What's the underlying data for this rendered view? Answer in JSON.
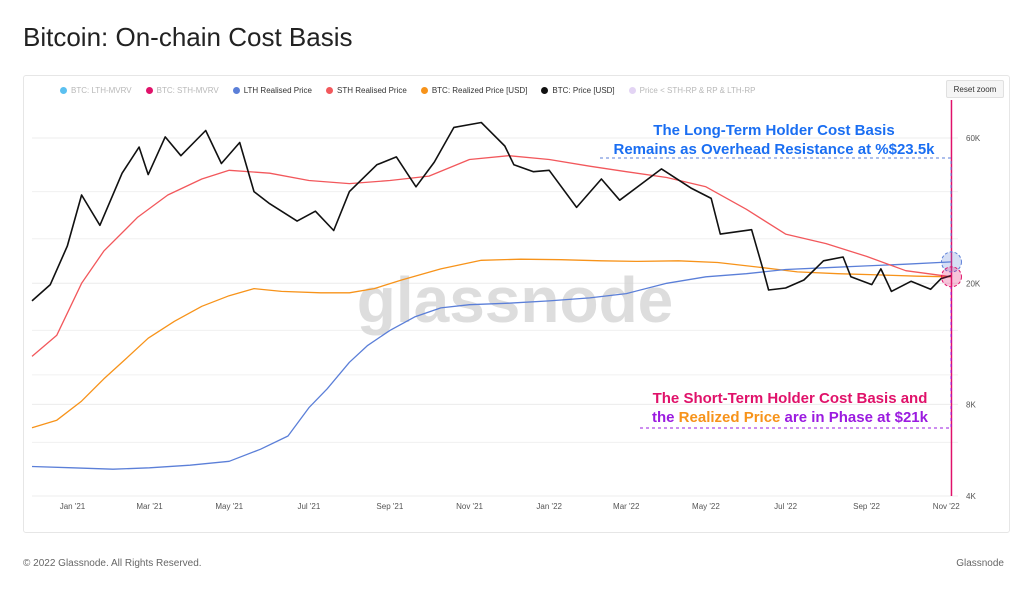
{
  "page": {
    "title": "Bitcoin: On-chain Cost Basis",
    "footer_left": "© 2022 Glassnode. All Rights Reserved.",
    "footer_right": "Glassnode",
    "watermark": "glassnode",
    "reset_zoom": "Reset zoom"
  },
  "legend": [
    {
      "label": "BTC: LTH-MVRV",
      "color": "#5bc0f0",
      "muted": true
    },
    {
      "label": "BTC: STH-MVRV",
      "color": "#e0126a",
      "muted": true
    },
    {
      "label": "LTH Realised Price",
      "color": "#5b7fd8",
      "muted": false
    },
    {
      "label": "STH Realised Price",
      "color": "#f2585c",
      "muted": false
    },
    {
      "label": "BTC: Realized Price [USD]",
      "color": "#f7931a",
      "muted": false
    },
    {
      "label": "BTC: Price [USD]",
      "color": "#111111",
      "muted": false
    },
    {
      "label": "Price < STH-RP & RP & LTH-RP",
      "color": "#e3d4f4",
      "muted": true
    }
  ],
  "annotations": {
    "top_line1": "The Long-Term Holder Cost Basis",
    "top_line2": "Remains as Overhead Resistance at %$23.5k",
    "bottom_line1": "The Short-Term Holder Cost Basis and",
    "bottom_line2_a": "the ",
    "bottom_line2_b": "Realized Price",
    "bottom_line2_c": " are in Phase at $21k"
  },
  "chart_data": {
    "type": "line",
    "y_scale": "log",
    "ylim": [
      4000,
      80000
    ],
    "y_ticks": [
      {
        "value": 4000,
        "label": "4K"
      },
      {
        "value": 8000,
        "label": "8K"
      },
      {
        "value": 20000,
        "label": "20K"
      },
      {
        "value": 60000,
        "label": "60K"
      }
    ],
    "x_range": [
      "2020-12-01",
      "2022-11-10"
    ],
    "x_ticks": [
      {
        "date": "2021-01-01",
        "label": "Jan '21"
      },
      {
        "date": "2021-03-01",
        "label": "Mar '21"
      },
      {
        "date": "2021-05-01",
        "label": "May '21"
      },
      {
        "date": "2021-07-01",
        "label": "Jul '21"
      },
      {
        "date": "2021-09-01",
        "label": "Sep '21"
      },
      {
        "date": "2021-11-01",
        "label": "Nov '21"
      },
      {
        "date": "2022-01-01",
        "label": "Jan '22"
      },
      {
        "date": "2022-03-01",
        "label": "Mar '22"
      },
      {
        "date": "2022-05-01",
        "label": "May '22"
      },
      {
        "date": "2022-07-01",
        "label": "Jul '22"
      },
      {
        "date": "2022-09-01",
        "label": "Sep '22"
      },
      {
        "date": "2022-11-01",
        "label": "Nov '22"
      }
    ],
    "series": [
      {
        "name": "BTC: Price [USD]",
        "color": "#111111",
        "width": 1.6,
        "points": [
          [
            "2020-12-01",
            17500
          ],
          [
            "2020-12-15",
            19800
          ],
          [
            "2020-12-28",
            26500
          ],
          [
            "2021-01-08",
            39000
          ],
          [
            "2021-01-22",
            31000
          ],
          [
            "2021-02-08",
            46000
          ],
          [
            "2021-02-21",
            56000
          ],
          [
            "2021-02-28",
            45500
          ],
          [
            "2021-03-13",
            60500
          ],
          [
            "2021-03-25",
            52500
          ],
          [
            "2021-04-13",
            63500
          ],
          [
            "2021-04-25",
            49500
          ],
          [
            "2021-05-09",
            58000
          ],
          [
            "2021-05-20",
            40000
          ],
          [
            "2021-06-01",
            36500
          ],
          [
            "2021-06-22",
            32000
          ],
          [
            "2021-07-06",
            34500
          ],
          [
            "2021-07-20",
            29800
          ],
          [
            "2021-08-01",
            40000
          ],
          [
            "2021-08-22",
            49000
          ],
          [
            "2021-09-06",
            52000
          ],
          [
            "2021-09-21",
            41500
          ],
          [
            "2021-10-05",
            50000
          ],
          [
            "2021-10-20",
            65000
          ],
          [
            "2021-11-10",
            67500
          ],
          [
            "2021-11-28",
            56500
          ],
          [
            "2021-12-05",
            49000
          ],
          [
            "2021-12-20",
            46500
          ],
          [
            "2022-01-01",
            47000
          ],
          [
            "2022-01-22",
            35500
          ],
          [
            "2022-02-10",
            44000
          ],
          [
            "2022-02-24",
            37500
          ],
          [
            "2022-03-28",
            47500
          ],
          [
            "2022-04-20",
            41000
          ],
          [
            "2022-05-05",
            38000
          ],
          [
            "2022-05-12",
            29000
          ],
          [
            "2022-06-05",
            30000
          ],
          [
            "2022-06-14",
            22000
          ],
          [
            "2022-06-18",
            19000
          ],
          [
            "2022-07-01",
            19300
          ],
          [
            "2022-07-15",
            20500
          ],
          [
            "2022-07-30",
            23700
          ],
          [
            "2022-08-14",
            24400
          ],
          [
            "2022-08-20",
            21000
          ],
          [
            "2022-09-05",
            19800
          ],
          [
            "2022-09-12",
            22300
          ],
          [
            "2022-09-20",
            18800
          ],
          [
            "2022-10-05",
            20300
          ],
          [
            "2022-10-20",
            19100
          ],
          [
            "2022-10-28",
            20700
          ],
          [
            "2022-11-05",
            21200
          ]
        ]
      },
      {
        "name": "STH Realised Price",
        "color": "#f2585c",
        "width": 1.3,
        "points": [
          [
            "2020-12-01",
            11500
          ],
          [
            "2020-12-20",
            13500
          ],
          [
            "2021-01-08",
            20000
          ],
          [
            "2021-01-25",
            25500
          ],
          [
            "2021-02-20",
            33000
          ],
          [
            "2021-03-15",
            39000
          ],
          [
            "2021-04-10",
            44000
          ],
          [
            "2021-05-01",
            47000
          ],
          [
            "2021-06-01",
            46000
          ],
          [
            "2021-07-01",
            43500
          ],
          [
            "2021-08-01",
            42500
          ],
          [
            "2021-09-01",
            43500
          ],
          [
            "2021-10-01",
            45000
          ],
          [
            "2021-11-01",
            51000
          ],
          [
            "2021-12-01",
            52500
          ],
          [
            "2022-01-01",
            51000
          ],
          [
            "2022-02-01",
            48500
          ],
          [
            "2022-03-01",
            46500
          ],
          [
            "2022-04-01",
            44500
          ],
          [
            "2022-05-01",
            41500
          ],
          [
            "2022-06-01",
            35000
          ],
          [
            "2022-07-01",
            29000
          ],
          [
            "2022-08-01",
            27000
          ],
          [
            "2022-09-01",
            24500
          ],
          [
            "2022-10-01",
            22000
          ],
          [
            "2022-11-05",
            21000
          ]
        ]
      },
      {
        "name": "BTC: Realized Price [USD]",
        "color": "#f7931a",
        "width": 1.3,
        "points": [
          [
            "2020-12-01",
            6700
          ],
          [
            "2020-12-20",
            7100
          ],
          [
            "2021-01-08",
            8200
          ],
          [
            "2021-01-25",
            9700
          ],
          [
            "2021-02-10",
            11200
          ],
          [
            "2021-02-28",
            13200
          ],
          [
            "2021-03-20",
            15000
          ],
          [
            "2021-04-10",
            16800
          ],
          [
            "2021-05-01",
            18200
          ],
          [
            "2021-05-20",
            19200
          ],
          [
            "2021-06-10",
            18800
          ],
          [
            "2021-07-10",
            18600
          ],
          [
            "2021-08-01",
            18600
          ],
          [
            "2021-08-20",
            19200
          ],
          [
            "2021-09-10",
            20500
          ],
          [
            "2021-10-10",
            22300
          ],
          [
            "2021-11-10",
            23800
          ],
          [
            "2021-12-10",
            24000
          ],
          [
            "2022-01-10",
            23900
          ],
          [
            "2022-02-10",
            23700
          ],
          [
            "2022-03-10",
            23600
          ],
          [
            "2022-04-10",
            23700
          ],
          [
            "2022-05-10",
            23400
          ],
          [
            "2022-06-10",
            22600
          ],
          [
            "2022-07-10",
            21800
          ],
          [
            "2022-08-10",
            21500
          ],
          [
            "2022-09-10",
            21300
          ],
          [
            "2022-10-10",
            21100
          ],
          [
            "2022-11-05",
            21000
          ]
        ]
      },
      {
        "name": "LTH Realised Price",
        "color": "#5b7fd8",
        "width": 1.3,
        "points": [
          [
            "2020-12-01",
            5000
          ],
          [
            "2021-01-01",
            4950
          ],
          [
            "2021-02-01",
            4900
          ],
          [
            "2021-03-01",
            4950
          ],
          [
            "2021-04-01",
            5050
          ],
          [
            "2021-05-01",
            5200
          ],
          [
            "2021-05-25",
            5700
          ],
          [
            "2021-06-15",
            6300
          ],
          [
            "2021-07-01",
            7800
          ],
          [
            "2021-07-15",
            9000
          ],
          [
            "2021-08-01",
            11000
          ],
          [
            "2021-08-15",
            12500
          ],
          [
            "2021-09-01",
            14000
          ],
          [
            "2021-09-20",
            15500
          ],
          [
            "2021-10-10",
            16600
          ],
          [
            "2021-11-01",
            17000
          ],
          [
            "2021-12-01",
            17200
          ],
          [
            "2022-01-01",
            17500
          ],
          [
            "2022-02-01",
            17900
          ],
          [
            "2022-03-01",
            18500
          ],
          [
            "2022-04-01",
            20000
          ],
          [
            "2022-05-01",
            21000
          ],
          [
            "2022-06-01",
            21500
          ],
          [
            "2022-07-01",
            22200
          ],
          [
            "2022-08-01",
            22500
          ],
          [
            "2022-09-01",
            22800
          ],
          [
            "2022-10-01",
            23100
          ],
          [
            "2022-11-05",
            23500
          ]
        ]
      }
    ],
    "highlights": [
      {
        "name": "LTH cost basis marker",
        "date": "2022-11-05",
        "value": 23500,
        "color": "#5b7fd8"
      },
      {
        "name": "STH/RP cost basis marker",
        "date": "2022-11-05",
        "value": 21000,
        "color": "#e0126a"
      }
    ]
  }
}
